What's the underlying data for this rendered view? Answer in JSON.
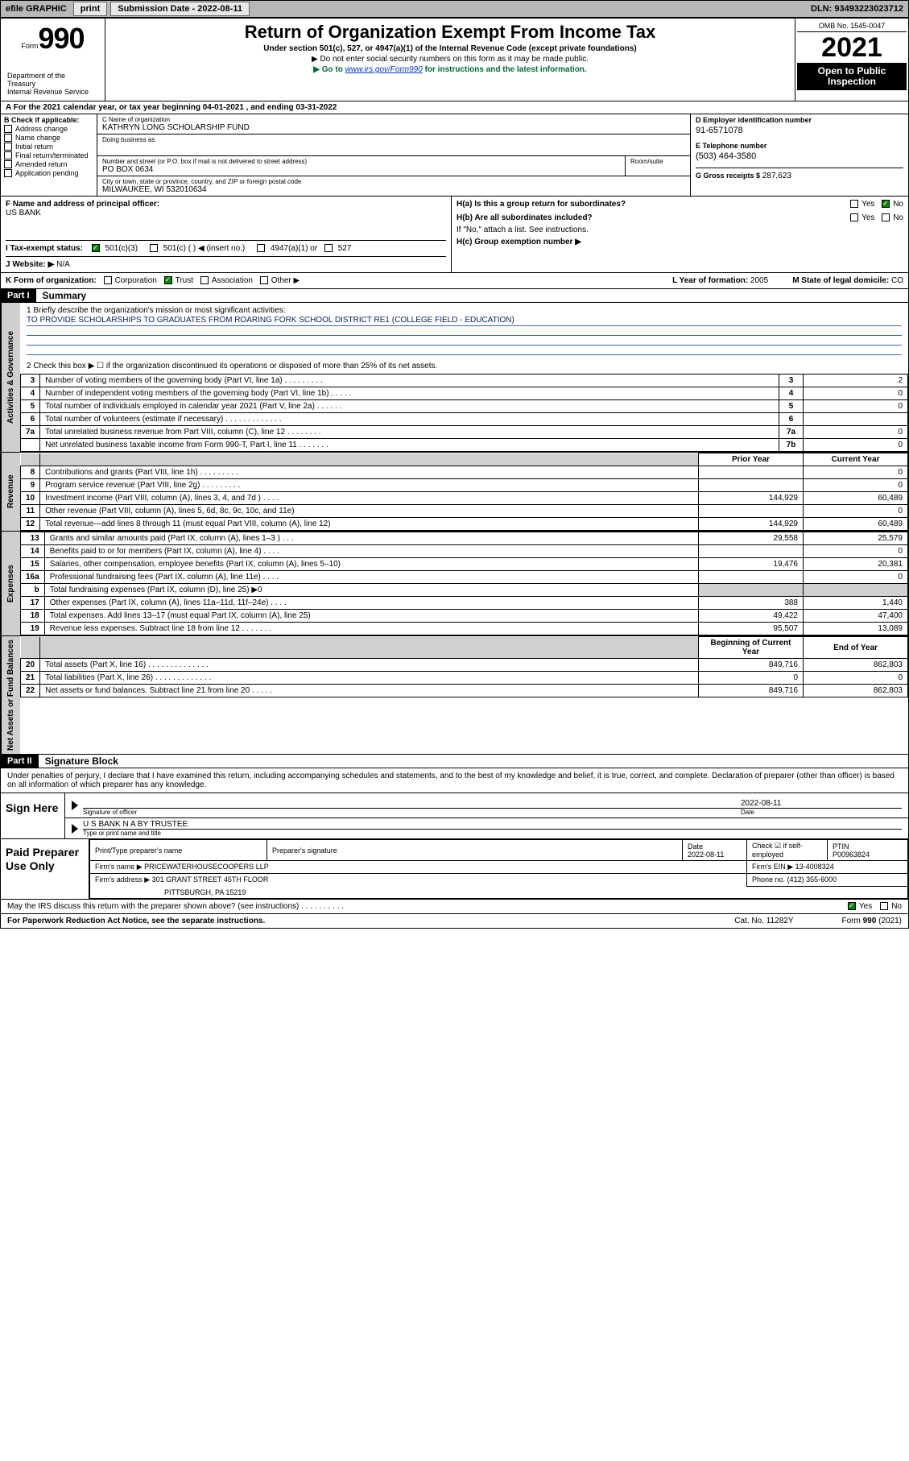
{
  "topbar": {
    "efile_label": "efile GRAPHIC",
    "print_btn": "print",
    "submission_label": "Submission Date -",
    "submission_date": "2022-08-11",
    "dln_label": "DLN:",
    "dln": "93493223023712"
  },
  "header": {
    "form_word": "Form",
    "form_num": "990",
    "title": "Return of Organization Exempt From Income Tax",
    "sub": "Under section 501(c), 527, or 4947(a)(1) of the Internal Revenue Code (except private foundations)",
    "note1_pre": "▶ Do not enter social security numbers on this form as it may be made public.",
    "note2_pre": "▶ Go to ",
    "note2_link": "www.irs.gov/Form990",
    "note2_post": " for instructions and the latest information.",
    "omb": "OMB No. 1545-0047",
    "year": "2021",
    "open_public_1": "Open to Public",
    "open_public_2": "Inspection",
    "dept1": "Department of the",
    "dept2": "Treasury",
    "dept3": "Internal Revenue Service"
  },
  "section_a": {
    "row_a": "For the 2021 calendar year, or tax year beginning 04-01-2021   , and ending 03-31-2022",
    "b_label": "B Check if applicable:",
    "b_opts": [
      "Address change",
      "Name change",
      "Initial return",
      "Final return/terminated",
      "Amended return",
      "Application pending"
    ],
    "c_name_label": "C Name of organization",
    "c_name": "KATHRYN LONG SCHOLARSHIP FUND",
    "dba_label": "Doing business as",
    "dba": "",
    "street_label": "Number and street (or P.O. box if mail is not delivered to street address)",
    "street": "PO BOX 0634",
    "suite_label": "Room/suite",
    "city_label": "City or town, state or province, country, and ZIP or foreign postal code",
    "city": "MILWAUKEE, WI  532010634",
    "d_ein_label": "D Employer identification number",
    "d_ein": "91-6571078",
    "e_phone_label": "E Telephone number",
    "e_phone": "(503) 464-3580",
    "g_gross_label": "G Gross receipts $",
    "g_gross": "287,623"
  },
  "row_f": {
    "f_label": "F  Name and address of principal officer:",
    "f_val": "US BANK",
    "ha_q": "H(a)  Is this a group return for subordinates?",
    "ha_yes": "Yes",
    "ha_no": "No",
    "hb_q": "H(b)  Are all subordinates included?",
    "hb_yes": "Yes",
    "hb_no": "No",
    "hb_note": "If \"No,\" attach a list. See instructions.",
    "hc_label": "H(c)  Group exemption number ▶"
  },
  "row_i": {
    "label": "I   Tax-exempt status:",
    "opt1": "501(c)(3)",
    "opt2": "501(c) (   ) ◀ (insert no.)",
    "opt3": "4947(a)(1) or",
    "opt4": "527"
  },
  "row_j": {
    "label": "J   Website: ▶",
    "val": "N/A"
  },
  "row_k": {
    "label": "K Form of organization:",
    "opts": [
      "Corporation",
      "Trust",
      "Association",
      "Other ▶"
    ],
    "L_label": "L Year of formation:",
    "L_val": "2005",
    "M_label": "M State of legal domicile:",
    "M_val": "CO"
  },
  "part1": {
    "hdr": "Part I",
    "title": "Summary",
    "vtab_gov": "Activities & Governance",
    "vtab_rev": "Revenue",
    "vtab_exp": "Expenses",
    "vtab_net": "Net Assets or Fund Balances",
    "line1_label": "1   Briefly describe the organization's mission or most significant activities:",
    "mission": "TO PROVIDE SCHOLARSHIPS TO GRADUATES FROM ROARING FORK SCHOOL DISTRICT RE1 (COLLEGE FIELD - EDUCATION)",
    "line2": "2   Check this box ▶ ☐  if the organization discontinued its operations or disposed of more than 25% of its net assets.",
    "gov_rows": [
      {
        "n": "3",
        "label": "Number of voting members of the governing body (Part VI, line 1a)  .    .    .    .    .    .    .    .    .",
        "box": "3",
        "val": "2"
      },
      {
        "n": "4",
        "label": "Number of independent voting members of the governing body (Part VI, line 1b)  .    .    .    .    .",
        "box": "4",
        "val": "0"
      },
      {
        "n": "5",
        "label": "Total number of individuals employed in calendar year 2021 (Part V, line 2a)  .    .    .    .    .    .",
        "box": "5",
        "val": "0"
      },
      {
        "n": "6",
        "label": "Total number of volunteers (estimate if necessary)  .    .    .    .    .    .    .    .    .    .    .    .    .",
        "box": "6",
        "val": ""
      },
      {
        "n": "7a",
        "label": "Total unrelated business revenue from Part VIII, column (C), line 12  .    .    .    .    .    .    .    .",
        "box": "7a",
        "val": "0"
      },
      {
        "n": "",
        "label": "Net unrelated business taxable income from Form 990-T, Part I, line 11  .    .    .    .    .    .    .",
        "box": "7b",
        "val": "0"
      }
    ],
    "col_prior": "Prior Year",
    "col_curr": "Current Year",
    "rev_rows": [
      {
        "n": "8",
        "label": "Contributions and grants (Part VIII, line 1h)  .    .    .    .    .    .    .    .    .",
        "p": "",
        "c": "0"
      },
      {
        "n": "9",
        "label": "Program service revenue (Part VIII, line 2g)  .    .    .    .    .    .    .    .    .",
        "p": "",
        "c": "0"
      },
      {
        "n": "10",
        "label": "Investment income (Part VIII, column (A), lines 3, 4, and 7d )  .    .    .    .",
        "p": "144,929",
        "c": "60,489"
      },
      {
        "n": "11",
        "label": "Other revenue (Part VIII, column (A), lines 5, 6d, 8c, 9c, 10c, and 11e)",
        "p": "",
        "c": "0"
      },
      {
        "n": "12",
        "label": "Total revenue—add lines 8 through 11 (must equal Part VIII, column (A), line 12)",
        "p": "144,929",
        "c": "60,489"
      }
    ],
    "exp_rows": [
      {
        "n": "13",
        "label": "Grants and similar amounts paid (Part IX, column (A), lines 1–3 )  .    .    .",
        "p": "29,558",
        "c": "25,579"
      },
      {
        "n": "14",
        "label": "Benefits paid to or for members (Part IX, column (A), line 4)  .    .    .    .",
        "p": "",
        "c": "0"
      },
      {
        "n": "15",
        "label": "Salaries, other compensation, employee benefits (Part IX, column (A), lines 5–10)",
        "p": "19,476",
        "c": "20,381"
      },
      {
        "n": "16a",
        "label": "Professional fundraising fees (Part IX, column (A), line 11e)  .    .    .    .",
        "p": "",
        "c": "0"
      },
      {
        "n": "b",
        "label": "Total fundraising expenses (Part IX, column (D), line 25) ▶0",
        "p": "shade",
        "c": "shade"
      },
      {
        "n": "17",
        "label": "Other expenses (Part IX, column (A), lines 11a–11d, 11f–24e)  .    .    .    .",
        "p": "388",
        "c": "1,440"
      },
      {
        "n": "18",
        "label": "Total expenses. Add lines 13–17 (must equal Part IX, column (A), line 25)",
        "p": "49,422",
        "c": "47,400"
      },
      {
        "n": "19",
        "label": "Revenue less expenses. Subtract line 18 from line 12  .    .    .    .    .    .    .",
        "p": "95,507",
        "c": "13,089"
      }
    ],
    "col_begin": "Beginning of Current Year",
    "col_end": "End of Year",
    "net_rows": [
      {
        "n": "20",
        "label": "Total assets (Part X, line 16)  .    .    .    .    .    .    .    .    .    .    .    .    .    .",
        "p": "849,716",
        "c": "862,803"
      },
      {
        "n": "21",
        "label": "Total liabilities (Part X, line 26)  .    .    .    .    .    .    .    .    .    .    .    .    .",
        "p": "0",
        "c": "0"
      },
      {
        "n": "22",
        "label": "Net assets or fund balances. Subtract line 21 from line 20  .    .    .    .    .",
        "p": "849,716",
        "c": "862,803"
      }
    ]
  },
  "part2": {
    "hdr": "Part II",
    "title": "Signature Block",
    "penalty": "Under penalties of perjury, I declare that I have examined this return, including accompanying schedules and statements, and to the best of my knowledge and belief, it is true, correct, and complete. Declaration of preparer (other than officer) is based on all information of which preparer has any knowledge.",
    "sign_here": "Sign Here",
    "sig_officer_label": "Signature of officer",
    "sig_date": "2022-08-11",
    "date_label": "Date",
    "name_title": "U S BANK N A BY TRUSTEE",
    "name_title_label": "Type or print name and title",
    "paid_prep": "Paid Preparer Use Only",
    "prep_name_label": "Print/Type preparer's name",
    "prep_sig_label": "Preparer's signature",
    "prep_date_label": "Date",
    "prep_date": "2022-08-11",
    "check_if_label": "Check ☑ if self-employed",
    "ptin_label": "PTIN",
    "ptin": "P00963824",
    "firm_name_label": "Firm's name    ▶",
    "firm_name": "PRICEWATERHOUSECOOPERS LLP",
    "firm_ein_label": "Firm's EIN ▶",
    "firm_ein": "13-4008324",
    "firm_addr_label": "Firm's address ▶",
    "firm_addr1": "301 GRANT STREET 45TH FLOOR",
    "firm_addr2": "PITTSBURGH, PA  15219",
    "phone_label": "Phone no.",
    "phone": "(412) 355-6000"
  },
  "footer": {
    "discuss": "May the IRS discuss this return with the preparer shown above? (see instructions)  .    .    .    .    .    .    .    .    .    .",
    "yes": "Yes",
    "no": "No",
    "pra": "For Paperwork Reduction Act Notice, see the separate instructions.",
    "cat": "Cat. No. 11282Y",
    "form": "Form 990 (2021)"
  }
}
